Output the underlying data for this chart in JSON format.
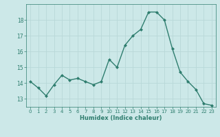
{
  "x": [
    0,
    1,
    2,
    3,
    4,
    5,
    6,
    7,
    8,
    9,
    10,
    11,
    12,
    13,
    14,
    15,
    16,
    17,
    18,
    19,
    20,
    21,
    22,
    23
  ],
  "y": [
    14.1,
    13.7,
    13.2,
    13.9,
    14.5,
    14.2,
    14.3,
    14.1,
    13.9,
    14.1,
    15.5,
    15.0,
    16.4,
    17.0,
    17.4,
    18.5,
    18.5,
    18.0,
    16.2,
    14.7,
    14.1,
    13.6,
    12.7,
    12.6
  ],
  "line_color": "#2e7d6e",
  "bg_color": "#cce8e8",
  "grid_color": "#b8d8d8",
  "xlabel": "Humidex (Indice chaleur)",
  "yticks": [
    13,
    14,
    15,
    16,
    17,
    18
  ],
  "xticks": [
    0,
    1,
    2,
    3,
    4,
    5,
    6,
    7,
    8,
    9,
    10,
    11,
    12,
    13,
    14,
    15,
    16,
    17,
    18,
    19,
    20,
    21,
    22,
    23
  ],
  "ylim": [
    12.5,
    19.0
  ],
  "xlim": [
    -0.5,
    23.5
  ]
}
